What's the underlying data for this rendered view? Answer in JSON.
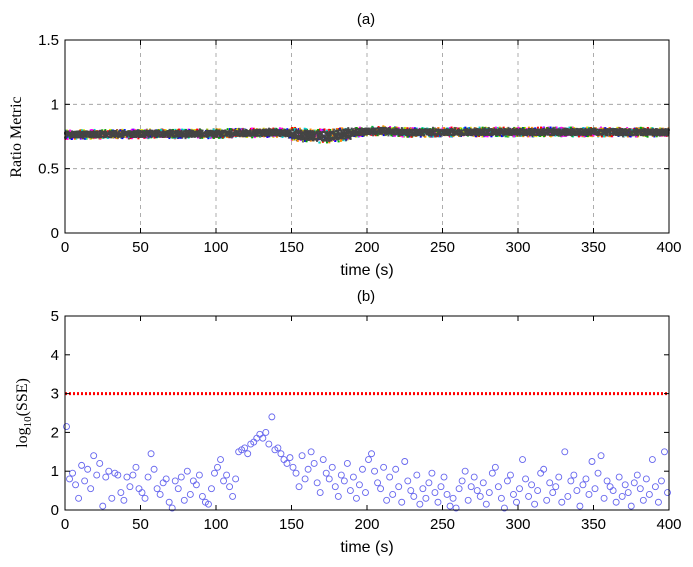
{
  "chart_data": [
    {
      "type": "scatter",
      "panel_label": "(a)",
      "title": "(a)",
      "xlabel": "time (s)",
      "ylabel": "Ratio Metric",
      "xlim": [
        0,
        400
      ],
      "ylim": [
        0,
        1.5
      ],
      "xticks": [
        0,
        50,
        100,
        150,
        200,
        250,
        300,
        350,
        400
      ],
      "yticks": [
        0,
        0.5,
        1,
        1.5
      ],
      "xtick_labels": [
        "0",
        "50",
        "100",
        "150",
        "200",
        "250",
        "300",
        "350",
        "400"
      ],
      "ytick_labels": [
        "0",
        "0.5",
        "1",
        "1.5"
      ],
      "grid": true,
      "description_series": "many overlapping sensor channels, dense band",
      "band": {
        "center": [
          [
            0,
            0.765
          ],
          [
            50,
            0.77
          ],
          [
            100,
            0.772
          ],
          [
            140,
            0.782
          ],
          [
            165,
            0.755
          ],
          [
            175,
            0.752
          ],
          [
            195,
            0.785
          ],
          [
            210,
            0.795
          ],
          [
            225,
            0.782
          ],
          [
            260,
            0.785
          ],
          [
            300,
            0.785
          ],
          [
            350,
            0.785
          ],
          [
            400,
            0.783
          ]
        ],
        "halfwidth": 0.035
      },
      "colors": [
        "#ff0000",
        "#ff00ff",
        "#00aa00",
        "#0000ff",
        "#dddd00",
        "#00cccc",
        "#ff8800",
        "#555555"
      ]
    },
    {
      "type": "scatter",
      "panel_label": "(b)",
      "title": "(b)",
      "xlabel": "time (s)",
      "ylabel_base": "log",
      "ylabel_sub": "10",
      "ylabel_rest": "(SSE)",
      "xlim": [
        0,
        400
      ],
      "ylim": [
        0,
        5
      ],
      "xticks": [
        0,
        50,
        100,
        150,
        200,
        250,
        300,
        350,
        400
      ],
      "yticks": [
        0,
        1,
        2,
        3,
        4,
        5
      ],
      "xtick_labels": [
        "0",
        "50",
        "100",
        "150",
        "200",
        "250",
        "300",
        "350",
        "400"
      ],
      "ytick_labels": [
        "0",
        "1",
        "2",
        "3",
        "4",
        "5"
      ],
      "grid": false,
      "threshold": 3,
      "threshold_color": "#ff0000",
      "marker_color": "#6666ee",
      "x": [
        1,
        3,
        5,
        7,
        9,
        11,
        13,
        15,
        17,
        19,
        21,
        23,
        25,
        27,
        29,
        31,
        33,
        35,
        37,
        39,
        41,
        43,
        45,
        47,
        49,
        51,
        53,
        55,
        57,
        59,
        61,
        63,
        65,
        67,
        69,
        71,
        73,
        75,
        77,
        79,
        81,
        83,
        85,
        87,
        89,
        91,
        93,
        95,
        97,
        99,
        101,
        103,
        105,
        107,
        109,
        111,
        113,
        115,
        117,
        119,
        121,
        123,
        125,
        127,
        129,
        131,
        133,
        135,
        137,
        139,
        141,
        143,
        145,
        147,
        149,
        151,
        153,
        155,
        157,
        159,
        161,
        163,
        165,
        167,
        169,
        171,
        173,
        175,
        177,
        179,
        181,
        183,
        185,
        187,
        189,
        191,
        193,
        195,
        197,
        199,
        201,
        203,
        205,
        207,
        209,
        211,
        213,
        215,
        217,
        219,
        221,
        223,
        225,
        227,
        229,
        231,
        233,
        235,
        237,
        239,
        241,
        243,
        245,
        247,
        249,
        251,
        253,
        255,
        257,
        259,
        261,
        263,
        265,
        267,
        269,
        271,
        273,
        275,
        277,
        279,
        281,
        283,
        285,
        287,
        289,
        291,
        293,
        295,
        297,
        299,
        301,
        303,
        305,
        307,
        309,
        311,
        313,
        315,
        317,
        319,
        321,
        323,
        325,
        327,
        329,
        331,
        333,
        335,
        337,
        339,
        341,
        343,
        345,
        347,
        349,
        351,
        353,
        355,
        357,
        359,
        361,
        363,
        365,
        367,
        369,
        371,
        373,
        375,
        377,
        379,
        381,
        383,
        385,
        387,
        389,
        391,
        393,
        395,
        397,
        399
      ],
      "y": [
        2.15,
        0.8,
        0.95,
        0.65,
        0.3,
        1.15,
        0.75,
        1.05,
        0.55,
        1.4,
        0.9,
        1.2,
        0.1,
        0.85,
        1.0,
        0.3,
        0.95,
        0.9,
        0.45,
        0.25,
        0.85,
        0.6,
        0.9,
        1.1,
        0.55,
        0.45,
        0.3,
        0.85,
        1.45,
        1.05,
        0.55,
        0.4,
        0.7,
        0.8,
        0.2,
        0.05,
        0.75,
        0.55,
        0.85,
        0.25,
        1.0,
        0.4,
        0.75,
        0.65,
        0.9,
        0.35,
        0.2,
        0.15,
        0.55,
        0.95,
        1.1,
        1.3,
        0.75,
        0.9,
        0.6,
        0.35,
        0.8,
        1.5,
        1.55,
        1.6,
        1.45,
        1.7,
        1.75,
        1.85,
        1.95,
        1.85,
        2.0,
        1.7,
        2.4,
        1.55,
        1.6,
        1.45,
        1.3,
        1.2,
        1.35,
        1.1,
        0.95,
        0.6,
        1.4,
        0.8,
        1.05,
        1.5,
        1.2,
        0.7,
        0.45,
        1.3,
        0.95,
        0.8,
        1.1,
        0.6,
        0.35,
        0.9,
        0.75,
        1.2,
        0.5,
        0.85,
        0.3,
        0.65,
        1.05,
        0.45,
        1.3,
        1.45,
        1.0,
        0.7,
        0.55,
        1.1,
        0.25,
        0.85,
        0.4,
        1.05,
        0.6,
        0.2,
        1.25,
        0.75,
        0.5,
        0.35,
        0.9,
        0.15,
        0.55,
        0.3,
        0.7,
        0.95,
        0.45,
        0.2,
        0.6,
        0.85,
        0.4,
        0.1,
        0.3,
        0.05,
        0.55,
        0.75,
        1.0,
        0.25,
        0.6,
        0.85,
        0.5,
        0.35,
        0.7,
        0.15,
        0.45,
        0.95,
        1.1,
        0.6,
        0.3,
        0.05,
        0.75,
        0.9,
        0.4,
        0.2,
        0.55,
        1.3,
        0.8,
        0.35,
        0.65,
        0.15,
        0.5,
        0.95,
        1.05,
        0.25,
        0.7,
        0.45,
        0.6,
        0.85,
        0.2,
        1.5,
        0.35,
        0.75,
        0.9,
        0.5,
        0.1,
        0.65,
        0.8,
        0.4,
        1.25,
        0.55,
        0.95,
        1.4,
        0.3,
        0.75,
        0.6,
        0.5,
        0.2,
        0.85,
        0.35,
        0.65,
        0.45,
        0.1,
        0.7,
        0.9,
        0.55,
        0.25,
        0.8,
        0.4,
        1.3,
        0.6,
        0.2,
        0.75,
        1.5,
        0.45
      ]
    }
  ]
}
